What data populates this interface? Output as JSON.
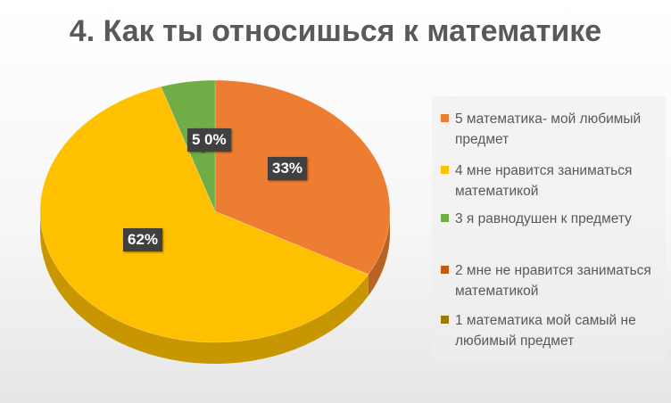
{
  "title": "4. Как ты относишься к математике",
  "chart_data": {
    "type": "pie",
    "title": "4. Как ты относишься к математике",
    "three_d": true,
    "legend_placement": "right",
    "categories": [
      "5 математика- мой любимый предмет",
      "4 мне нравится заниматься математикой",
      "3 я равнодушен к предмету",
      "2 мне не нравится заниматься математикой",
      "1 математика мой самый не любимый предмет"
    ],
    "values": [
      33,
      62,
      5,
      0,
      0
    ],
    "value_labels": [
      "33%",
      "62%",
      "5",
      "0%",
      "0%"
    ],
    "colors": [
      "#ED7D31",
      "#FFC000",
      "#70AD47",
      "#C55A11",
      "#9A7B00"
    ]
  },
  "legend": {
    "items": [
      {
        "text": "5 математика- мой любимый предмет",
        "color": "#ED7D31"
      },
      {
        "text": "4 мне нравится заниматься математикой",
        "color": "#FFC000"
      },
      {
        "text": "3 я равнодушен к предмету",
        "color": "#70AD47"
      },
      {
        "text": "2 мне не нравится заниматься математикой",
        "color": "#C55A11"
      },
      {
        "text": "1 математика мой самый не любимый предмет",
        "color": "#9A7B00"
      }
    ]
  }
}
